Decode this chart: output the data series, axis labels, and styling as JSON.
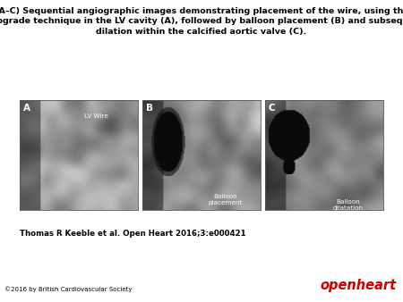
{
  "title": "(A–C) Sequential angiographic images demonstrating placement of the wire, using the\nretrograde technique in the LV cavity (A), followed by balloon placement (B) and subsequent\ndilation within the calcified aortic valve (C).",
  "citation": "Thomas R Keeble et al. Open Heart 2016;3:e000421",
  "copyright": "©2016 by British Cardiovascular Society",
  "journal": "openheart",
  "journal_color": "#cc0000",
  "bg_color": "#ffffff",
  "panel_labels": [
    "A",
    "B",
    "C"
  ],
  "ann_A": "LV Wire",
  "ann_B": "Balloon\nplacement",
  "ann_C": "Balloon\ndilatation",
  "title_fontsize": 6.8,
  "citation_fontsize": 6.2,
  "copyright_fontsize": 5.0,
  "journal_fontsize": 10.5,
  "panel_label_fontsize": 7.5,
  "ann_fontsize": 5.2
}
